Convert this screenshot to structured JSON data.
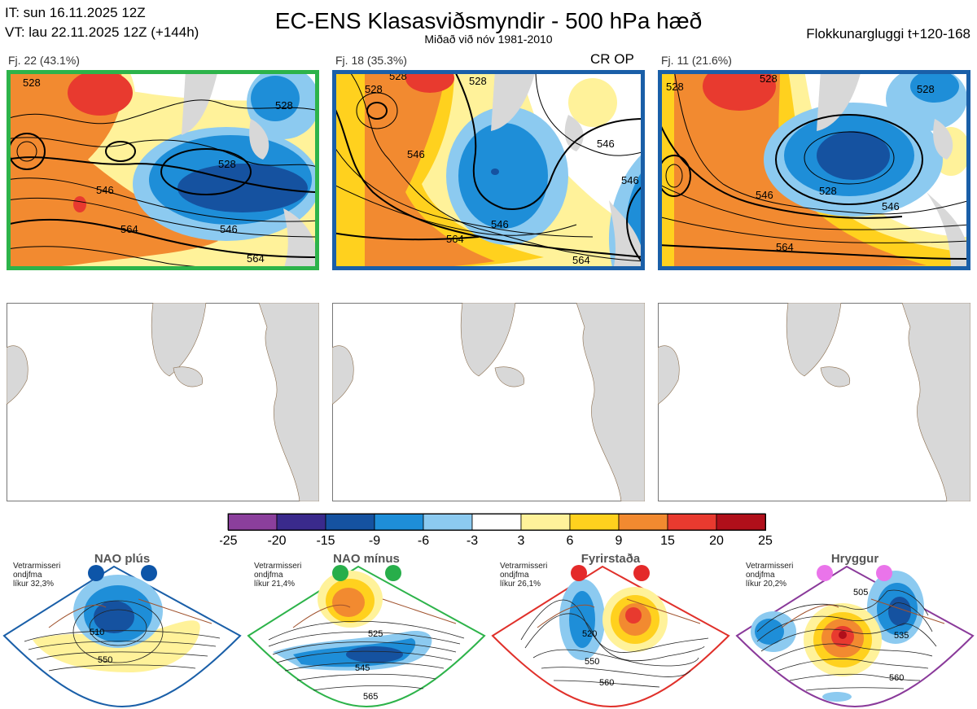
{
  "header": {
    "init": "IT: sun 16.11.2025 12Z",
    "valid": "VT: lau 22.11.2025 12Z  (+144h)",
    "title": "EC-ENS Klasasviðsmyndir - 500 hPa hæð",
    "subtitle": "Miðað við nóv 1981-2010",
    "window": "Flokkunargluggi t+120-168"
  },
  "clusters": [
    {
      "label": "Fj. 22 (43.1%)",
      "border_color": "#2db34a",
      "contours": [
        "528",
        "528",
        "528",
        "546",
        "564",
        "546",
        "564"
      ]
    },
    {
      "label": "Fj. 18 (35.3%)",
      "border_color": "#1a5fa8",
      "op_label": "CR OP",
      "contours": [
        "528",
        "528",
        "528",
        "546",
        "546",
        "546",
        "564",
        "564",
        "546"
      ]
    },
    {
      "label": "Fj. 11 (21.6%)",
      "border_color": "#1a5fa8",
      "contours": [
        "528",
        "528",
        "528",
        "546",
        "546",
        "564",
        "528"
      ]
    }
  ],
  "colorbar": {
    "ticks": [
      "-25",
      "-20",
      "-15",
      "-9",
      "-6",
      "-3",
      "3",
      "6",
      "9",
      "15",
      "20",
      "25"
    ],
    "colors": [
      "#8b3f9c",
      "#3a2a8c",
      "#1552a0",
      "#1e8ed8",
      "#8ccaf0",
      "#ffffff",
      "#fff29a",
      "#ffd11e",
      "#f28a30",
      "#e83a2f",
      "#b00f1a"
    ]
  },
  "regimes": [
    {
      "name": "NAO plús",
      "caption": [
        "Vetrarmisseri",
        "ondjfma",
        "líkur 32,3%"
      ],
      "border": "#1a5fa8",
      "dot": "#0d55a8",
      "labels": [
        "510",
        "550"
      ]
    },
    {
      "name": "NAO mínus",
      "caption": [
        "Vetrarmisseri",
        "ondjfma",
        "líkur 21,4%"
      ],
      "border": "#2db34a",
      "dot": "#27ae4a",
      "labels": [
        "525",
        "545",
        "565"
      ]
    },
    {
      "name": "Fyrirstaða",
      "caption": [
        "Vetrarmisseri",
        "ondjfma",
        "líkur 26,1%"
      ],
      "border": "#e0302a",
      "dot": "#e42a2a",
      "labels": [
        "520",
        "550",
        "560"
      ]
    },
    {
      "name": "Hryggur",
      "caption": [
        "Vetrarmisseri",
        "ondjfma",
        "líkur 20,2%"
      ],
      "border": "#8a3a9a",
      "dot": "#ea74ea",
      "labels": [
        "505",
        "535",
        "560"
      ]
    }
  ]
}
